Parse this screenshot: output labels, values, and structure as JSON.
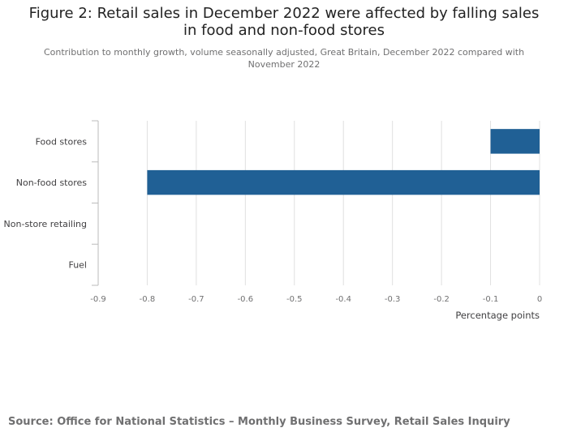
{
  "title": "Figure 2: Retail sales in December 2022 were affected by falling sales in food and non-food stores",
  "subtitle": "Contribution to monthly growth, volume seasonally adjusted, Great Britain, December 2022 compared with November 2022",
  "source": "Source: Office for National Statistics – Monthly Business Survey, Retail Sales Inquiry",
  "colors": {
    "bar": "#206095",
    "grid": "#e0e0e0",
    "axis": "#bbbbbb"
  },
  "chart_data": {
    "type": "bar",
    "orientation": "horizontal",
    "categories": [
      "Food stores",
      "Non-food stores",
      "Non-store retailing",
      "Fuel"
    ],
    "values": [
      -0.1,
      -0.8,
      0,
      0
    ],
    "xlabel": "Percentage points",
    "ylabel": "",
    "xlim": [
      -0.9,
      0
    ],
    "xticks": [
      -0.9,
      -0.8,
      -0.7,
      -0.6,
      -0.5,
      -0.4,
      -0.3,
      -0.2,
      -0.1,
      0
    ],
    "xtick_labels": [
      "-0.9",
      "-0.8",
      "-0.7",
      "-0.6",
      "-0.5",
      "-0.4",
      "-0.3",
      "-0.2",
      "-0.1",
      "0"
    ],
    "grid": true,
    "legend": "none"
  }
}
